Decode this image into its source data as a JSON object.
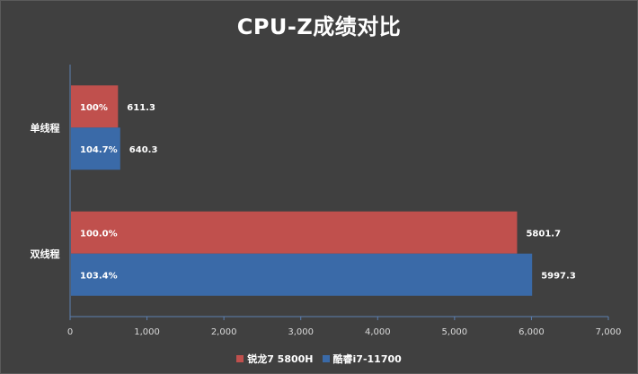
{
  "chart_data": {
    "type": "bar",
    "orientation": "horizontal",
    "title": "CPU-Z成绩对比",
    "categories": [
      "单线程",
      "双线程"
    ],
    "series": [
      {
        "name": "锐龙7 5800H",
        "color": "#c0504d",
        "values": [
          611.3,
          5801.7
        ],
        "value_labels": [
          "611.3",
          "5801.7"
        ],
        "inner_labels": [
          "100%",
          "100.0%"
        ]
      },
      {
        "name": "酷睿i7-11700",
        "color": "#3a6aa8",
        "values": [
          640.3,
          5997.3
        ],
        "value_labels": [
          "640.3",
          "5997.3"
        ],
        "inner_labels": [
          "104.7%",
          "103.4%"
        ]
      }
    ],
    "xlim": [
      0,
      7000
    ],
    "xticks": [
      0,
      1000,
      2000,
      3000,
      4000,
      5000,
      6000,
      7000
    ],
    "xtick_labels": [
      "0",
      "1,000",
      "2,000",
      "3,000",
      "4,000",
      "5,000",
      "6,000",
      "7,000"
    ],
    "grid": false,
    "legend_position": "bottom"
  }
}
